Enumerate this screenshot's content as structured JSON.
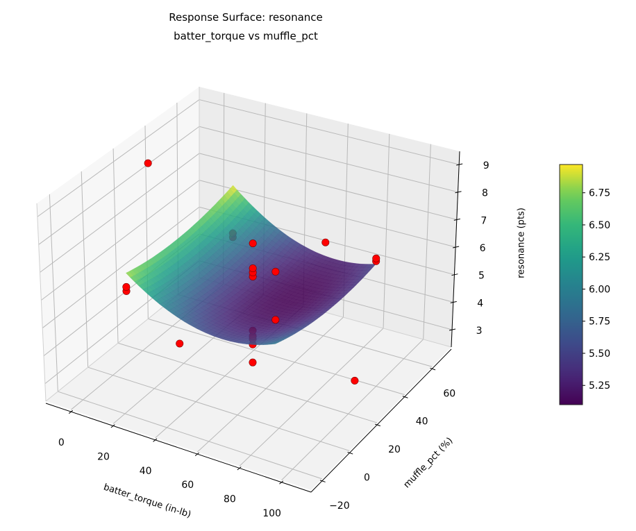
{
  "chart_data": {
    "type": "surface3d",
    "title_lines": [
      "Response Surface: resonance",
      "batter_torque vs muffle_pct"
    ],
    "xlabel": "batter_torque (in-lb)",
    "ylabel": "muffle_pct (%)",
    "zlabel": "resonance (pts)",
    "xlim": [
      -12,
      114
    ],
    "ylim": [
      -28,
      74
    ],
    "zlim": [
      2.37,
      9.48
    ],
    "xticks": [
      0,
      20,
      40,
      60,
      80,
      100
    ],
    "yticks": [
      -20,
      0,
      20,
      40,
      60
    ],
    "zticks": [
      3,
      4,
      5,
      6,
      7,
      8,
      9
    ],
    "xtick_labels": [
      "0",
      "20",
      "40",
      "60",
      "80",
      "100"
    ],
    "ytick_labels": [
      "−20",
      "0",
      "20",
      "40",
      "60"
    ],
    "ztick_labels": [
      "3",
      "4",
      "5",
      "6",
      "7",
      "8",
      "9"
    ],
    "grid": true,
    "surface": {
      "colormap": "viridis",
      "x": [
        15,
        32.5,
        50,
        67.5,
        85
      ],
      "y": [
        -10,
        7.5,
        25,
        42.5,
        60
      ],
      "z": [
        [
          6.85,
          6.025,
          5.6,
          5.575,
          5.95
        ],
        [
          6.655,
          5.794,
          5.334,
          5.273,
          5.613
        ],
        [
          6.61,
          5.714,
          5.218,
          5.121,
          5.425
        ],
        [
          6.715,
          5.783,
          5.251,
          5.119,
          5.388
        ],
        [
          6.97,
          6.003,
          5.435,
          5.268,
          5.5
        ]
      ]
    },
    "points": {
      "color": "#ff0000",
      "xyz": [
        [
          0.5,
          25,
          9.0
        ],
        [
          99.5,
          25,
          3.3
        ],
        [
          50,
          -24.5,
          5.8
        ],
        [
          50,
          74.5,
          4.9
        ],
        [
          15,
          -10,
          6.2
        ],
        [
          15,
          -10,
          6.35
        ],
        [
          85,
          -10,
          6.8
        ],
        [
          85,
          -10,
          8.5
        ],
        [
          15,
          60,
          5.05
        ],
        [
          15,
          60,
          5.2
        ],
        [
          85,
          60,
          5.6
        ],
        [
          85,
          60,
          5.7
        ],
        [
          50,
          25,
          2.85
        ],
        [
          50,
          25,
          3.5
        ],
        [
          50,
          25,
          3.7
        ],
        [
          50,
          25,
          3.8
        ],
        [
          50,
          25,
          4.0
        ],
        [
          50,
          25,
          5.95
        ],
        [
          50,
          25,
          6.1
        ],
        [
          50,
          25,
          6.25
        ],
        [
          50,
          25,
          7.15
        ]
      ]
    },
    "colorbar": {
      "min": 5.1,
      "max": 6.97,
      "ticks": [
        5.25,
        5.5,
        5.75,
        6.0,
        6.25,
        6.5,
        6.75
      ],
      "tick_labels": [
        "5.25",
        "5.50",
        "5.75",
        "6.00",
        "6.25",
        "6.50",
        "6.75"
      ]
    }
  }
}
